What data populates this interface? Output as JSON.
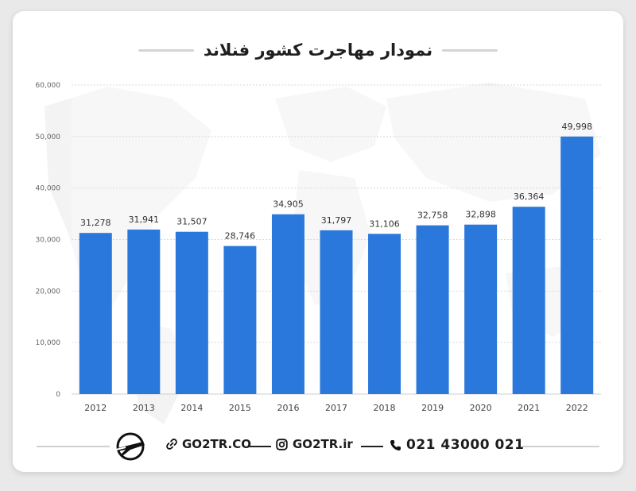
{
  "header": {
    "title": "نمودار مهاجرت کشور فنلاند"
  },
  "chart_data": {
    "type": "bar",
    "categories": [
      "2012",
      "2013",
      "2014",
      "2015",
      "2016",
      "2017",
      "2018",
      "2019",
      "2020",
      "2021",
      "2022"
    ],
    "values": [
      31278,
      31941,
      31507,
      28746,
      34905,
      31797,
      31106,
      32758,
      32898,
      36364,
      49998
    ],
    "data_labels": [
      "31,278",
      "31,941",
      "31,507",
      "28,746",
      "34,905",
      "31,797",
      "31,106",
      "32,758",
      "32,898",
      "36,364",
      "49,998"
    ],
    "y_ticks": [
      0,
      10000,
      20000,
      30000,
      40000,
      50000,
      60000
    ],
    "y_tick_labels": [
      "0",
      "10,000",
      "20,000",
      "30,000",
      "40,000",
      "50,000",
      "60,000"
    ],
    "ylim": [
      0,
      60000
    ],
    "grid": true,
    "bar_color": "#2a78db"
  },
  "footer": {
    "website": "GO2TR.CO",
    "instagram": "GO2TR.ir",
    "phone": "021 43000 021",
    "icons": [
      "plane-logo-icon",
      "link-icon",
      "instagram-icon",
      "phone-icon"
    ]
  }
}
